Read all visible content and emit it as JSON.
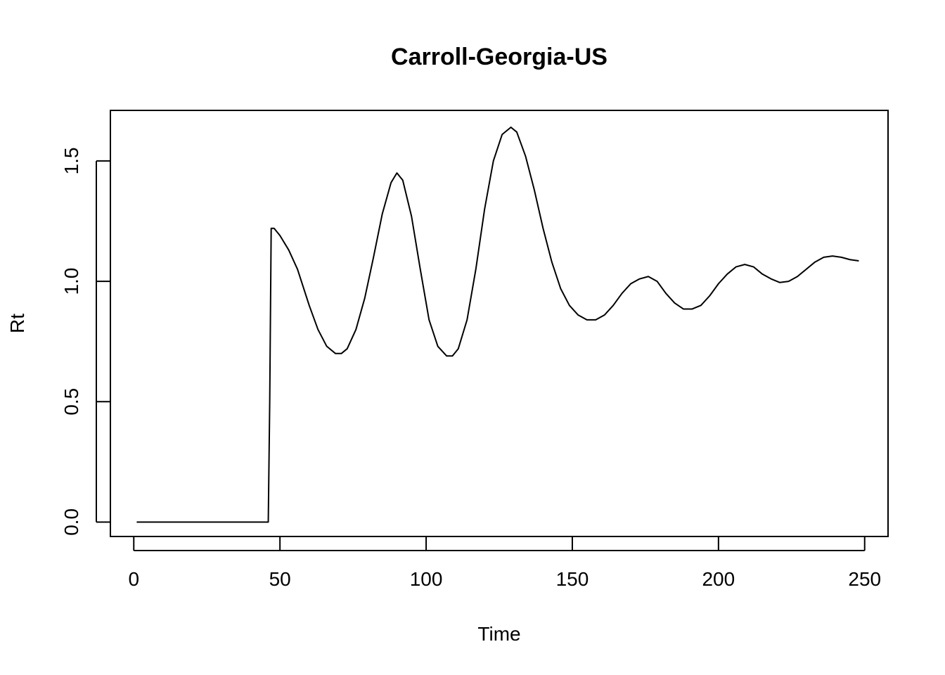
{
  "chart_data": {
    "type": "line",
    "title": "Carroll-Georgia-US",
    "xlabel": "Time",
    "ylabel": "Rt",
    "xlim": [
      -8,
      258
    ],
    "ylim": [
      -0.06,
      1.71
    ],
    "xticks": [
      0,
      50,
      100,
      150,
      200,
      250
    ],
    "xtick_labels": [
      "0",
      "50",
      "100",
      "150",
      "200",
      "250"
    ],
    "yticks": [
      0.0,
      0.5,
      1.0,
      1.5
    ],
    "ytick_labels": [
      "0.0",
      "0.5",
      "1.0",
      "1.5"
    ],
    "grid": false,
    "series": [
      {
        "color": "#000000",
        "x": [
          1,
          10,
          20,
          30,
          40,
          46,
          46.5,
          47,
          48,
          50,
          53,
          56,
          60,
          63,
          66,
          69,
          71,
          73,
          76,
          79,
          82,
          85,
          88,
          90,
          92,
          95,
          98,
          101,
          104,
          107,
          109,
          111,
          114,
          117,
          120,
          123,
          126,
          129,
          131,
          134,
          137,
          140,
          143,
          146,
          149,
          152,
          155,
          158,
          161,
          164,
          167,
          170,
          173,
          176,
          179,
          182,
          185,
          188,
          191,
          194,
          197,
          200,
          203,
          206,
          209,
          212,
          215,
          218,
          221,
          224,
          227,
          230,
          233,
          236,
          239,
          242,
          245,
          248
        ],
        "y": [
          0,
          0,
          0,
          0,
          0,
          0,
          0.5,
          1.22,
          1.22,
          1.19,
          1.13,
          1.05,
          0.9,
          0.8,
          0.73,
          0.7,
          0.7,
          0.72,
          0.8,
          0.93,
          1.1,
          1.28,
          1.41,
          1.45,
          1.42,
          1.27,
          1.05,
          0.84,
          0.73,
          0.69,
          0.69,
          0.72,
          0.84,
          1.05,
          1.3,
          1.5,
          1.61,
          1.64,
          1.62,
          1.52,
          1.38,
          1.22,
          1.08,
          0.97,
          0.9,
          0.86,
          0.84,
          0.84,
          0.86,
          0.9,
          0.95,
          0.99,
          1.01,
          1.02,
          1.0,
          0.95,
          0.91,
          0.885,
          0.885,
          0.9,
          0.94,
          0.99,
          1.03,
          1.06,
          1.07,
          1.06,
          1.03,
          1.01,
          0.995,
          1.0,
          1.02,
          1.05,
          1.08,
          1.1,
          1.105,
          1.1,
          1.09,
          1.085
        ]
      }
    ]
  }
}
